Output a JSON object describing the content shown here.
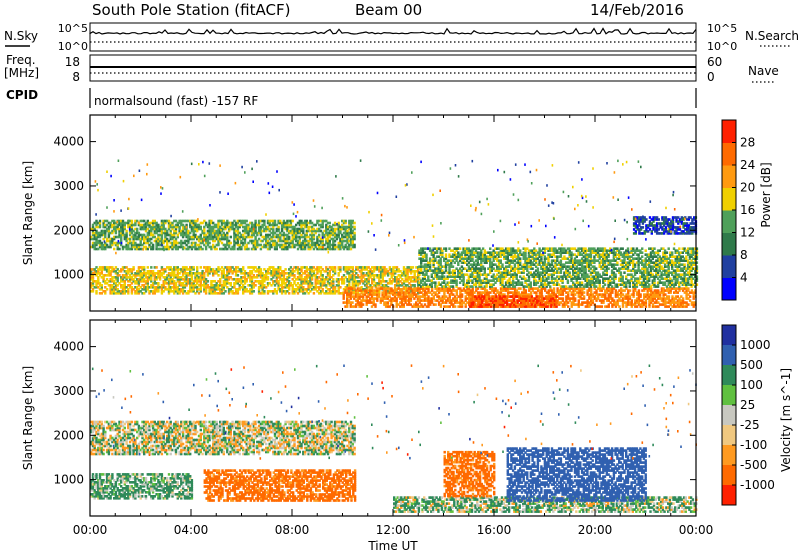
{
  "header": {
    "station": "South Pole Station (fitACF)",
    "beam": "Beam 00",
    "date": "14/Feb/2016"
  },
  "strip_panels": {
    "nsky_label": "N.Sky",
    "nsearch_label": "N.Search",
    "nsky_ticks": [
      "10^5",
      "10^0"
    ],
    "freq_label_1": "Freq.",
    "freq_label_2": "[MHz]",
    "freq_ticks": [
      "18",
      "8"
    ],
    "nave_label": "Nave",
    "nave_ticks": [
      "60",
      "0"
    ],
    "cpid_label": "CPID",
    "cpid_text": "normalsound (fast) -157 RF"
  },
  "chart_data": [
    {
      "type": "heatmap",
      "title": "",
      "quantity": "Power",
      "colorbar_label": "Power [dB]",
      "colorbar_ticks": [
        4,
        8,
        12,
        16,
        20,
        24,
        28
      ],
      "colorbar_range": [
        0,
        30
      ],
      "colors": [
        "#0000ff",
        "#2040a0",
        "#2f7a4a",
        "#4fa05a",
        "#f0d000",
        "#ff9a10",
        "#ff6a00",
        "#ff2000"
      ],
      "xlabel": "",
      "ylabel": "Slant Range [km]",
      "x_range_hours": [
        0,
        24
      ],
      "y_range_km": [
        180,
        4600
      ],
      "y_ticks": [
        1000,
        2000,
        3000,
        4000
      ],
      "bands": [
        {
          "t0": 0.0,
          "t1": 10.5,
          "r0": 1550,
          "r1": 2200,
          "value": 14
        },
        {
          "t0": 0.0,
          "t1": 13.0,
          "r0": 550,
          "r1": 1150,
          "value": 18
        },
        {
          "t0": 10.0,
          "t1": 24.0,
          "r0": 250,
          "r1": 700,
          "value": 24
        },
        {
          "t0": 15.0,
          "t1": 18.5,
          "r0": 250,
          "r1": 500,
          "value": 28
        },
        {
          "t0": 21.5,
          "t1": 24.0,
          "r0": 1900,
          "r1": 2300,
          "value": 6
        },
        {
          "t0": 13.0,
          "t1": 24.0,
          "r0": 700,
          "r1": 1600,
          "value": 14
        }
      ]
    },
    {
      "type": "heatmap",
      "title": "",
      "quantity": "Velocity",
      "colorbar_label": "Velocity [m s^-1]",
      "colorbar_ticks": [
        1000,
        500,
        100,
        25,
        -25,
        -100,
        -500,
        -1000
      ],
      "colors": [
        "#2030a0",
        "#3060b0",
        "#2f8a5a",
        "#60c040",
        "#c8c8c0",
        "#f0c880",
        "#ff9a20",
        "#ff6a00",
        "#ff2000"
      ],
      "xlabel": "Time UT",
      "ylabel": "Slant Range [km]",
      "x_range_hours": [
        0,
        24
      ],
      "x_tick_labels": [
        "00:00",
        "04:00",
        "08:00",
        "12:00",
        "16:00",
        "20:00",
        "00:00"
      ],
      "y_range_km": [
        180,
        4600
      ],
      "y_ticks": [
        1000,
        2000,
        3000,
        4000
      ],
      "bands": [
        {
          "t0": 0.0,
          "t1": 10.5,
          "r0": 1550,
          "r1": 2300,
          "value": 0
        },
        {
          "t0": 0.0,
          "t1": 4.0,
          "r0": 550,
          "r1": 1100,
          "value": 100
        },
        {
          "t0": 4.5,
          "t1": 10.5,
          "r0": 500,
          "r1": 1200,
          "value": -400
        },
        {
          "t0": 12.0,
          "t1": 24.0,
          "r0": 250,
          "r1": 600,
          "value": 60
        },
        {
          "t0": 16.5,
          "t1": 22.0,
          "r0": 500,
          "r1": 1700,
          "value": 600
        },
        {
          "t0": 14.0,
          "t1": 16.0,
          "r0": 600,
          "r1": 1600,
          "value": -400
        }
      ]
    }
  ]
}
